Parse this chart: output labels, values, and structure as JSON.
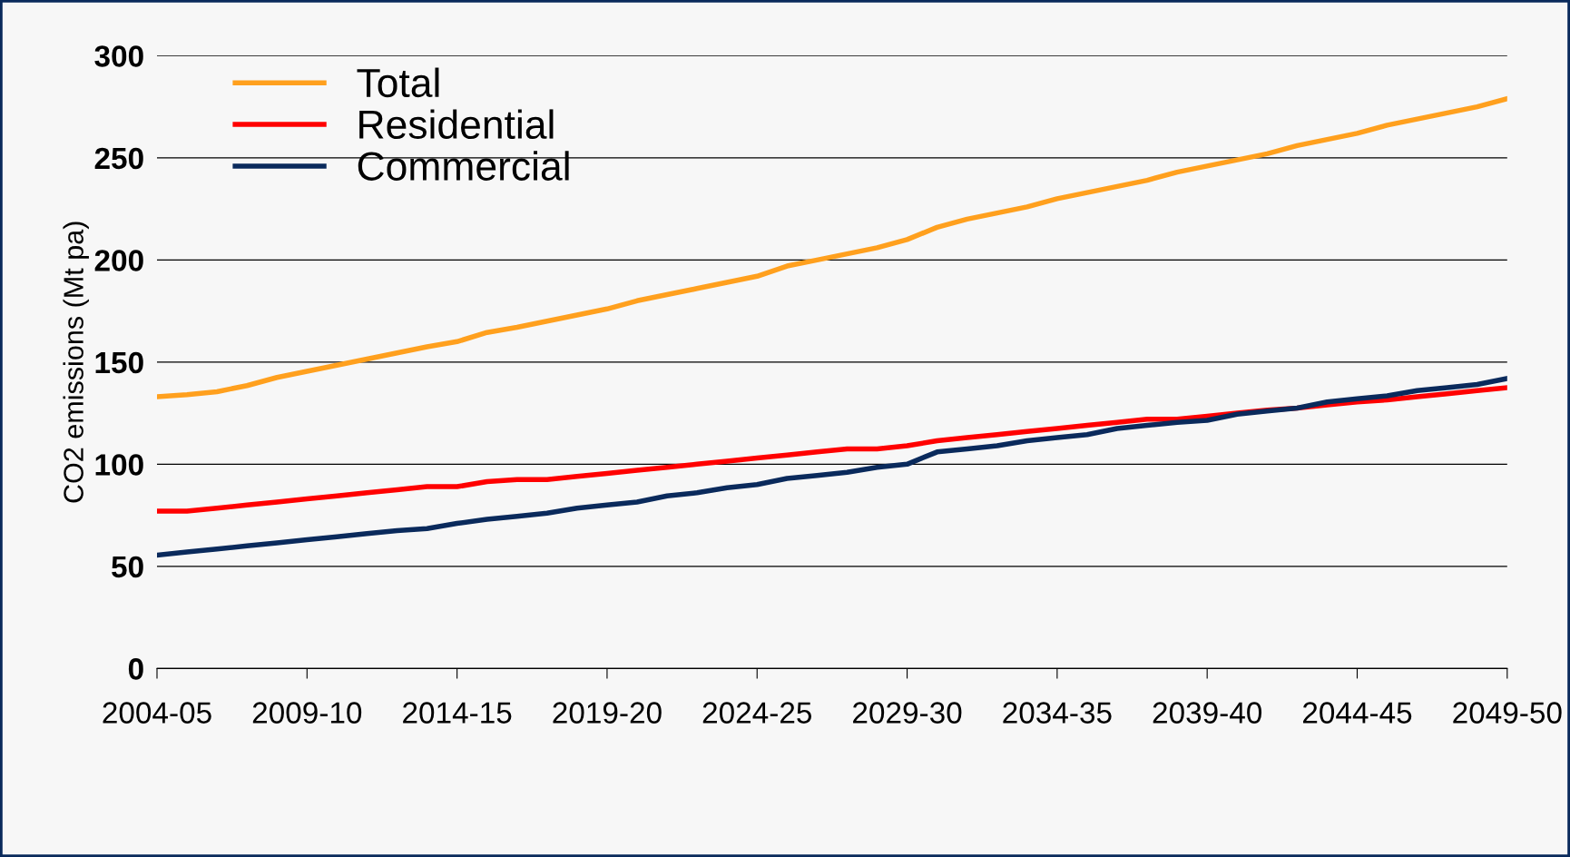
{
  "chart_data": {
    "type": "line",
    "ylabel": "CO2 emissions (Mt pa)",
    "categories": [
      "2004-05",
      null,
      null,
      null,
      null,
      "2009-10",
      null,
      null,
      null,
      null,
      "2014-15",
      null,
      null,
      null,
      null,
      "2019-20",
      null,
      null,
      null,
      null,
      "2024-25",
      null,
      null,
      null,
      null,
      "2029-30",
      null,
      null,
      null,
      null,
      "2034-35",
      null,
      null,
      null,
      null,
      "2039-40",
      null,
      null,
      null,
      null,
      "2044-45",
      null,
      null,
      null,
      null,
      "2049-50"
    ],
    "series": [
      {
        "name": "Total",
        "color": "#ffa01e",
        "values": [
          133,
          134,
          135.5,
          138.5,
          142.5,
          145.5,
          148.5,
          151.5,
          154.5,
          157.5,
          160,
          164.5,
          167,
          170,
          173,
          176,
          180,
          183,
          186,
          189,
          192,
          197,
          200,
          203,
          206,
          210,
          216,
          220,
          223,
          226,
          230,
          233,
          236,
          239,
          243,
          246,
          249,
          252,
          256,
          259,
          262,
          266,
          269,
          272,
          275,
          279
        ]
      },
      {
        "name": "Residential",
        "color": "#ff0000",
        "values": [
          77,
          77,
          78.5,
          80,
          81.5,
          83,
          84.5,
          86,
          87.5,
          89,
          89,
          91.5,
          92.5,
          92.5,
          94,
          95.5,
          97,
          98.5,
          100,
          101.5,
          103,
          104.5,
          106,
          107.5,
          107.5,
          109,
          111.5,
          113,
          114.5,
          116,
          117.5,
          119,
          120.5,
          122,
          122,
          123.5,
          125,
          126.5,
          127.5,
          129,
          130.5,
          131.5,
          133,
          134.5,
          136,
          137.5
        ]
      },
      {
        "name": "Commercial",
        "color": "#0a2a5c",
        "values": [
          55.5,
          57,
          58.5,
          60,
          61.5,
          63,
          64.5,
          66,
          67.5,
          68.5,
          71,
          73,
          74.5,
          76,
          78.5,
          80,
          81.5,
          84.5,
          86,
          88.5,
          90,
          93,
          94.5,
          96,
          98.5,
          100,
          106,
          107.5,
          109,
          111.5,
          113,
          114.5,
          117.5,
          119,
          120.5,
          121.5,
          124.5,
          126,
          127.5,
          130.5,
          132,
          133.5,
          136,
          137.5,
          139,
          142
        ]
      }
    ],
    "ylim": [
      0,
      300
    ],
    "yticks": [
      0,
      50,
      100,
      150,
      200,
      250,
      300
    ],
    "grid": "y",
    "legend": "top left",
    "marker": "none",
    "line_style": "solid"
  }
}
